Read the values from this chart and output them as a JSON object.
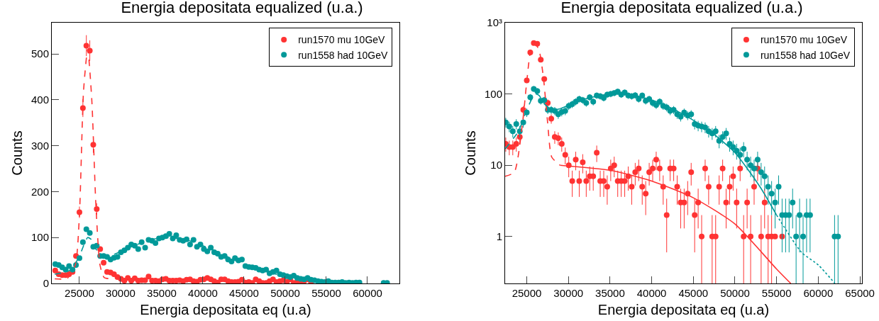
{
  "chart_data": [
    {
      "type": "scatter",
      "title": "Energia depositata equalized (u.a.)",
      "xlabel": "Energia depositata eq (u.a)",
      "ylabel": "Counts",
      "xlim": [
        21640,
        63880
      ],
      "xticks": [
        25000,
        30000,
        35000,
        40000,
        45000,
        50000,
        55000,
        60000
      ],
      "ylim": [
        0,
        568
      ],
      "yticks": [
        0,
        100,
        200,
        300,
        400,
        500
      ],
      "grid": false,
      "legend": "top right",
      "marker": "circle",
      "x": [
        22060,
        22480,
        22900,
        23320,
        23740,
        24160,
        24580,
        25000,
        25420,
        25840,
        26260,
        26680,
        27100,
        27520,
        27940,
        28360,
        28780,
        29200,
        29620,
        30040,
        30460,
        30880,
        31300,
        31720,
        32140,
        32560,
        32980,
        33400,
        33820,
        34240,
        34660,
        35080,
        35500,
        35920,
        36340,
        36760,
        37180,
        37600,
        38020,
        38440,
        38860,
        39280,
        39700,
        40120,
        40540,
        40960,
        41380,
        41800,
        42220,
        42640,
        43060,
        43480,
        43900,
        44320,
        44740,
        45160,
        45580,
        46000,
        46420,
        46840,
        47260,
        47680,
        48100,
        48520,
        48940,
        49360,
        49780,
        50200,
        50620,
        51040,
        51460,
        51880,
        52300,
        52720,
        53140,
        53560,
        53980,
        54400,
        54820,
        55240,
        55660,
        56080,
        56500,
        56920,
        57340,
        57760,
        58180,
        58600,
        59020,
        59440,
        59860,
        60280,
        60700,
        61120,
        61540,
        61960,
        62380
      ],
      "series": [
        {
          "name": "run1570 mu 10GeV",
          "color": "#ff3333",
          "values": [
            28,
            20,
            18,
            18,
            20,
            25,
            60,
            155,
            382,
            518,
            507,
            302,
            162,
            75,
            45,
            25,
            24,
            20,
            14,
            10,
            6,
            12,
            6,
            11,
            6,
            7,
            7,
            15,
            6,
            6,
            5,
            9,
            10,
            6,
            6,
            6,
            7,
            5,
            8,
            9,
            5,
            4,
            8,
            9,
            12,
            9,
            5,
            2,
            9,
            9,
            5,
            3,
            3,
            4,
            8,
            2,
            3,
            1,
            9,
            5,
            1,
            1,
            5,
            9,
            3,
            5,
            7,
            3,
            9,
            1,
            3,
            1,
            5,
            9,
            1,
            null,
            null,
            null,
            null,
            null,
            null,
            null,
            null,
            null,
            null,
            null,
            null,
            null,
            null,
            null,
            null,
            null,
            null,
            null,
            null,
            null,
            null
          ],
          "errors": [
            null,
            null,
            null,
            null,
            null,
            null,
            null,
            12.4,
            19.5,
            22.8,
            22.5,
            17.4,
            12.7,
            null,
            null,
            null,
            null,
            null,
            null,
            null,
            null,
            null,
            null,
            null,
            null,
            null,
            null,
            null,
            null,
            null,
            null,
            null,
            null,
            null,
            null,
            null,
            null,
            null,
            null,
            null,
            null,
            null,
            null,
            null,
            null,
            null,
            null,
            null,
            null,
            null,
            null,
            null,
            null,
            null,
            null,
            null,
            null,
            null,
            null,
            null,
            null,
            null,
            null,
            null,
            null,
            null,
            null,
            null,
            null,
            null,
            null,
            null,
            null,
            null,
            null,
            null,
            null,
            null,
            null,
            null,
            null,
            null,
            null,
            null,
            null,
            null,
            null,
            null,
            null,
            null,
            null,
            null,
            null,
            null,
            null,
            null,
            null
          ]
        },
        {
          "name": "run1558 had 10GeV",
          "color": "#009999",
          "values": [
            42,
            40,
            35,
            30,
            38,
            30,
            40,
            55,
            90,
            118,
            110,
            80,
            82,
            60,
            60,
            58,
            52,
            56,
            58,
            68,
            72,
            78,
            85,
            82,
            75,
            90,
            78,
            95,
            93,
            88,
            98,
            100,
            103,
            108,
            98,
            105,
            95,
            93,
            96,
            85,
            95,
            80,
            85,
            75,
            70,
            78,
            68,
            65,
            58,
            60,
            52,
            48,
            55,
            50,
            52,
            38,
            36,
            35,
            34,
            30,
            28,
            30,
            22,
            25,
            28,
            20,
            18,
            16,
            14,
            17,
            12,
            10,
            9,
            12,
            8,
            7,
            5,
            4,
            3,
            5,
            2,
            2,
            2,
            3,
            1,
            2,
            1,
            2,
            2,
            null,
            null,
            null,
            null,
            null,
            null,
            1,
            1
          ]
        },
        {
          "type": "line",
          "color": "#ff3333",
          "line_style": "dashed",
          "marker": "none",
          "x": [
            22000,
            23500,
            24500,
            25000,
            25500,
            26000,
            26500,
            27000,
            27500,
            28000,
            29000
          ],
          "values": [
            10,
            11,
            40,
            150,
            420,
            510,
            400,
            170,
            40,
            13,
            10
          ]
        },
        {
          "type": "line",
          "color": "#009999",
          "line_style": "dashed",
          "marker": "none",
          "x": [
            22000,
            24000,
            25000,
            26000,
            26500,
            27000,
            28000,
            29000,
            32000,
            35000,
            38000,
            41000,
            44000,
            47000,
            50000,
            53000,
            55000
          ],
          "values": [
            20,
            30,
            60,
            100,
            95,
            75,
            60,
            62,
            85,
            100,
            95,
            75,
            50,
            30,
            15,
            5,
            2
          ]
        }
      ]
    },
    {
      "type": "scatter",
      "title": "Energia depositata equalized (u.a.)",
      "xlabel": "Energia depositata eq (u.a)",
      "ylabel": "Counts",
      "log": "y",
      "xlim": [
        22400,
        65250
      ],
      "xticks": [
        25000,
        30000,
        35000,
        40000,
        45000,
        50000,
        55000,
        60000,
        65000
      ],
      "ylim": [
        0.22,
        1000
      ],
      "yticks": [
        1,
        10,
        100,
        {
          "value": 1000,
          "label": "10³"
        }
      ],
      "grid": false,
      "legend": "top right",
      "marker": "circle",
      "x": [
        22480,
        22900,
        23320,
        23740,
        24160,
        24580,
        25000,
        25420,
        25840,
        26260,
        26680,
        27100,
        27520,
        27940,
        28360,
        28780,
        29200,
        29620,
        30040,
        30460,
        30880,
        31300,
        31720,
        32140,
        32560,
        32980,
        33400,
        33820,
        34240,
        34660,
        35080,
        35500,
        35920,
        36340,
        36760,
        37180,
        37600,
        38020,
        38440,
        38860,
        39280,
        39700,
        40120,
        40540,
        40960,
        41380,
        41800,
        42220,
        42640,
        43060,
        43480,
        43900,
        44320,
        44740,
        45160,
        45580,
        46000,
        46420,
        46840,
        47260,
        47680,
        48100,
        48520,
        48940,
        49360,
        49780,
        50200,
        50620,
        51040,
        51460,
        51880,
        52300,
        52720,
        53140,
        53560,
        53980,
        54400,
        54820,
        55240,
        55660,
        56080,
        56500,
        56920,
        57340,
        57760,
        58180,
        58600,
        59020,
        59440,
        59860,
        60280,
        60700,
        61120,
        61540,
        61960,
        62380
      ],
      "series": [
        {
          "name": "run1570 mu 10GeV",
          "color": "#ff3333",
          "values": [
            20,
            18,
            18,
            20,
            25,
            60,
            155,
            382,
            518,
            507,
            302,
            162,
            75,
            45,
            25,
            24,
            20,
            14,
            10,
            6,
            12,
            6,
            11,
            6,
            7,
            7,
            15,
            6,
            6,
            5,
            9,
            10,
            6,
            6,
            6,
            7,
            5,
            8,
            9,
            5,
            4,
            8,
            9,
            12,
            9,
            5,
            2,
            9,
            9,
            5,
            3,
            3,
            4,
            8,
            2,
            3,
            1,
            9,
            5,
            1,
            1,
            5,
            9,
            3,
            5,
            7,
            3,
            9,
            1,
            3,
            1,
            5,
            9,
            1,
            3,
            1,
            1,
            1,
            null,
            1,
            null,
            null,
            null,
            null,
            null,
            null,
            null,
            null,
            null,
            null,
            null,
            null,
            null,
            null,
            null,
            null
          ],
          "errors": [
            4.5,
            4.2,
            4.2,
            4.5,
            5,
            7.7,
            12.4,
            19.5,
            22.8,
            22.5,
            17.4,
            12.7,
            8.7,
            6.7,
            5,
            4.9,
            4.5,
            3.7,
            3.2,
            2.4,
            3.5,
            2.4,
            3.3,
            2.4,
            2.6,
            2.6,
            3.9,
            2.4,
            2.4,
            2.2,
            3,
            3.2,
            2.4,
            2.4,
            2.4,
            2.6,
            2.2,
            2.8,
            3,
            2.2,
            2,
            2.8,
            3,
            3.5,
            3,
            2.2,
            1.4,
            3,
            3,
            2.2,
            1.7,
            1.7,
            2,
            2.8,
            1.4,
            1.7,
            [
              0.22,
              2
            ],
            3,
            2.2,
            [
              0.22,
              2
            ],
            [
              0.22,
              2
            ],
            2.2,
            3,
            1.7,
            2.2,
            2.6,
            1.7,
            3,
            [
              0.22,
              2
            ],
            1.7,
            [
              0.22,
              2
            ],
            2.2,
            3,
            [
              0.22,
              2
            ],
            1.7,
            [
              0.22,
              2
            ],
            [
              0.22,
              2
            ],
            null,
            null,
            null,
            null,
            null,
            null,
            null,
            null,
            null,
            null,
            null,
            null,
            null,
            null,
            null,
            null,
            null,
            null,
            null
          ]
        },
        {
          "name": "run1558 had 10GeV",
          "color": "#009999",
          "values": [
            40,
            35,
            30,
            38,
            30,
            40,
            55,
            90,
            118,
            110,
            80,
            82,
            60,
            60,
            58,
            52,
            56,
            58,
            68,
            72,
            78,
            85,
            82,
            75,
            90,
            78,
            95,
            93,
            88,
            98,
            100,
            103,
            108,
            98,
            105,
            95,
            93,
            96,
            85,
            95,
            80,
            85,
            75,
            70,
            78,
            68,
            65,
            58,
            60,
            52,
            48,
            55,
            50,
            52,
            38,
            36,
            35,
            34,
            30,
            28,
            30,
            22,
            25,
            28,
            20,
            18,
            16,
            14,
            17,
            12,
            10,
            9,
            12,
            8,
            7,
            5,
            4,
            3,
            5,
            2,
            2,
            2,
            3,
            1,
            2,
            1,
            2,
            2,
            null,
            null,
            null,
            null,
            null,
            null,
            1,
            1
          ],
          "errors": [
            6.3,
            5.9,
            5.5,
            6.2,
            5.5,
            6.3,
            7.4,
            9.5,
            10.9,
            10.5,
            8.9,
            9.1,
            7.7,
            7.7,
            7.6,
            7.2,
            7.5,
            7.6,
            8.2,
            8.5,
            8.8,
            9.2,
            9.1,
            8.7,
            9.5,
            8.8,
            9.7,
            9.6,
            9.4,
            9.9,
            10,
            10.1,
            10.4,
            9.9,
            10.2,
            9.7,
            9.6,
            9.8,
            9.2,
            9.7,
            8.9,
            9.2,
            8.7,
            8.4,
            8.8,
            8.2,
            8.1,
            7.6,
            7.7,
            7.2,
            6.9,
            7.4,
            7.1,
            7.2,
            6.2,
            6,
            5.9,
            5.8,
            5.5,
            5.3,
            5.5,
            4.7,
            5,
            5.3,
            4.5,
            4.2,
            4,
            3.7,
            4.1,
            3.5,
            3.2,
            3,
            3.5,
            2.8,
            2.6,
            2.2,
            2,
            1.7,
            2.2,
            1.4,
            1.4,
            1.4,
            1.7,
            [
              0.22,
              2
            ],
            1.4,
            [
              0.22,
              2
            ],
            1.4,
            1.4,
            null,
            null,
            null,
            null,
            null,
            null,
            [
              0.22,
              2
            ],
            [
              0.22,
              2
            ]
          ]
        },
        {
          "type": "line",
          "color": "#ff3333",
          "line_style": "dashed",
          "marker": "none",
          "x": [
            22400,
            23500,
            24500,
            25000,
            25500,
            26000,
            26500,
            27000,
            27500,
            28000,
            29000
          ],
          "values": [
            7,
            8,
            40,
            150,
            420,
            510,
            400,
            170,
            40,
            13,
            10
          ]
        },
        {
          "type": "line",
          "color": "#ff3333",
          "line_style": "solid",
          "marker": "none",
          "x": [
            29000,
            35000,
            40000,
            45000,
            50000,
            55000,
            56700
          ],
          "values": [
            10,
            8.5,
            6,
            3.5,
            1.5,
            0.35,
            0.22
          ]
        },
        {
          "type": "line",
          "color": "#009999",
          "line_style": "dashed",
          "marker": "none",
          "x": [
            22400,
            24000,
            25000,
            26000,
            26500,
            27000,
            28000,
            29000
          ],
          "values": [
            17,
            30,
            60,
            100,
            95,
            75,
            60,
            62
          ]
        },
        {
          "type": "line",
          "color": "#009999",
          "line_style": "solid",
          "marker": "none",
          "x": [
            29000,
            32000,
            35000,
            38000,
            41000,
            44000,
            47000,
            50000,
            53000,
            55000
          ],
          "values": [
            62,
            85,
            100,
            95,
            75,
            50,
            30,
            15,
            5,
            2
          ]
        },
        {
          "type": "line",
          "color": "#009999",
          "line_style": "dotted",
          "marker": "none",
          "x": [
            55000,
            58000,
            60000,
            62000
          ],
          "values": [
            2,
            0.6,
            0.4,
            0.22
          ]
        }
      ]
    }
  ]
}
